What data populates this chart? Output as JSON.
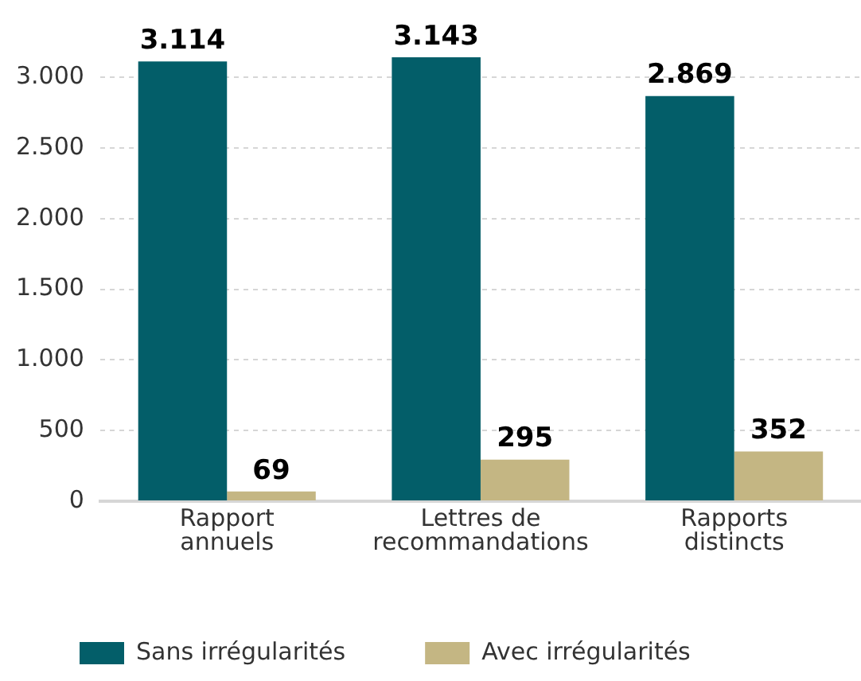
{
  "chart_data": {
    "type": "bar",
    "categories": [
      "Rapport annuels",
      "Lettres de recommandations",
      "Rapports distincts"
    ],
    "series": [
      {
        "name": "Sans irrégularités",
        "color": "#035e69",
        "values": [
          3114,
          3143,
          2869
        ],
        "value_labels": [
          "3.114",
          "3.143",
          "2.869"
        ]
      },
      {
        "name": "Avec irrégularités",
        "color": "#c4b683",
        "values": [
          69,
          295,
          352
        ],
        "value_labels": [
          "69",
          "295",
          "352"
        ]
      }
    ],
    "ylim": [
      0,
      3143
    ],
    "yticks": [
      0,
      {
        "value": 500,
        "label": "500"
      },
      {
        "value": 1000,
        "label": "1.000"
      },
      {
        "value": 1500,
        "label": "1.500"
      },
      {
        "value": 2000,
        "label": "2.000"
      },
      {
        "value": 2500,
        "label": "2.500"
      },
      {
        "value": 3000,
        "label": "3.000"
      }
    ],
    "grid": "y",
    "legend": "bottom"
  }
}
